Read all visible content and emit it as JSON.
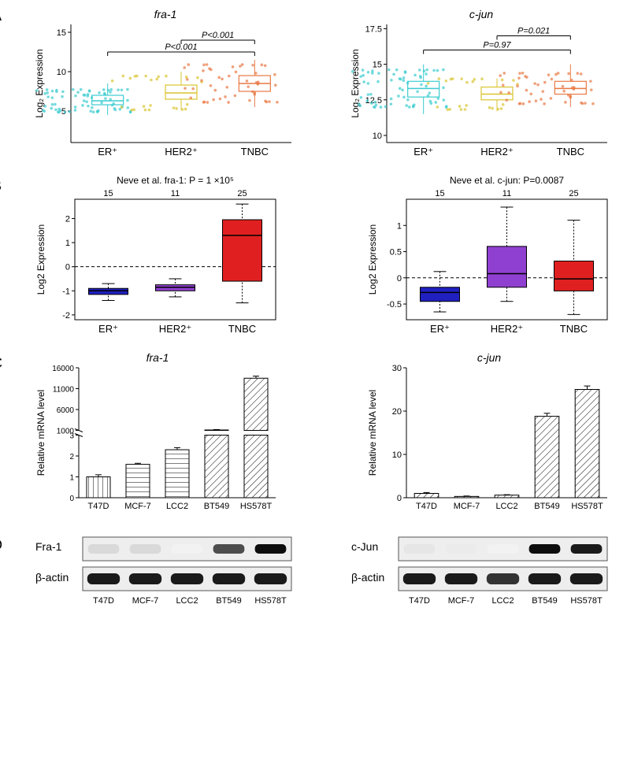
{
  "panelA": {
    "label": "A",
    "fra1": {
      "title": "fra-1",
      "ylabel": "Log₂ Expression",
      "ylim": [
        1,
        16
      ],
      "yticks": [
        5,
        10,
        15
      ],
      "categories": [
        "ER⁺",
        "HER2⁺",
        "TNBC"
      ],
      "colors": [
        "#3cccd0",
        "#d9c430",
        "#e87944"
      ],
      "medians": [
        6.3,
        7.3,
        8.5
      ],
      "q1": [
        5.8,
        6.5,
        7.5
      ],
      "q3": [
        7.0,
        8.3,
        9.5
      ],
      "whisker_low": [
        4.5,
        5.2,
        5.5
      ],
      "whisker_high": [
        8.5,
        10.0,
        11.5
      ],
      "annotations": [
        {
          "text": "P<0.001",
          "from": 0,
          "to": 2,
          "y": 12.5
        },
        {
          "text": "P<0.001",
          "from": 1,
          "to": 2,
          "y": 14
        }
      ]
    },
    "cjun": {
      "title": "c-jun",
      "ylabel": "Log₂ Expression",
      "ylim": [
        9.5,
        17.8
      ],
      "yticks": [
        10.0,
        12.5,
        15.0,
        17.5
      ],
      "categories": [
        "ER⁺",
        "HER2⁺",
        "TNBC"
      ],
      "colors": [
        "#3cccd0",
        "#d9c430",
        "#e87944"
      ],
      "medians": [
        13.3,
        12.9,
        13.3
      ],
      "q1": [
        12.7,
        12.5,
        12.9
      ],
      "q3": [
        13.8,
        13.4,
        13.8
      ],
      "whisker_low": [
        11.5,
        11.7,
        12.0
      ],
      "whisker_high": [
        15.0,
        14.0,
        15.0
      ],
      "annotations": [
        {
          "text": "P=0.97",
          "from": 0,
          "to": 2,
          "y": 16.0
        },
        {
          "text": "P=0.021",
          "from": 1,
          "to": 2,
          "y": 17.0
        }
      ]
    }
  },
  "panelB": {
    "label": "B",
    "fra1": {
      "title": "Neve et al. fra-1: P = 1 ×10⁵",
      "ylabel": "Log2 Expression",
      "counts": [
        "15",
        "11",
        "25"
      ],
      "categories": [
        "ER⁺",
        "HER2⁺",
        "TNBC"
      ],
      "colors": [
        "#2020c0",
        "#9040d0",
        "#e02020"
      ],
      "ylim": [
        -2.2,
        2.8
      ],
      "yticks": [
        -2,
        -1,
        0,
        1,
        2
      ],
      "medians": [
        -1.0,
        -0.85,
        1.3
      ],
      "q1": [
        -1.15,
        -1.0,
        -0.6
      ],
      "q3": [
        -0.9,
        -0.75,
        1.95
      ],
      "whisker_low": [
        -1.4,
        -1.25,
        -1.5
      ],
      "whisker_high": [
        -0.7,
        -0.5,
        2.6
      ]
    },
    "cjun": {
      "title": "Neve et al. c-jun: P=0.0087",
      "ylabel": "Log2 Expression",
      "counts": [
        "15",
        "11",
        "25"
      ],
      "categories": [
        "ER⁺",
        "HER2⁺",
        "TNBC"
      ],
      "colors": [
        "#2020c0",
        "#9040d0",
        "#e02020"
      ],
      "ylim": [
        -0.8,
        1.5
      ],
      "yticks": [
        -0.5,
        0.0,
        0.5,
        1.0
      ],
      "medians": [
        -0.28,
        0.08,
        -0.02
      ],
      "q1": [
        -0.45,
        -0.18,
        -0.25
      ],
      "q3": [
        -0.18,
        0.6,
        0.32
      ],
      "whisker_low": [
        -0.65,
        -0.45,
        -0.7
      ],
      "whisker_high": [
        0.12,
        1.35,
        1.1
      ]
    }
  },
  "panelC": {
    "label": "C",
    "fra1": {
      "title": "fra-1",
      "ylabel": "Relative mRNA level",
      "categories": [
        "T47D",
        "MCF-7",
        "LCC2",
        "BT549",
        "HS578T"
      ],
      "values": [
        1.0,
        1.6,
        2.3,
        1100,
        13500
      ],
      "errors": [
        0.1,
        0.05,
        0.1,
        100,
        500
      ],
      "break_at": 3,
      "lower_ylim": [
        0,
        3
      ],
      "lower_yticks": [
        0,
        1,
        2,
        3
      ],
      "upper_ylim": [
        1000,
        16000
      ],
      "upper_yticks": [
        1000,
        6000,
        11000,
        16000
      ],
      "bar_fill": "#ffffff",
      "bar_stroke": "#000000"
    },
    "cjun": {
      "title": "c-jun",
      "ylabel": "Relative mRNA level",
      "categories": [
        "T47D",
        "MCF-7",
        "LCC2",
        "BT549",
        "HS578T"
      ],
      "values": [
        1.0,
        0.3,
        0.6,
        18.8,
        25.0
      ],
      "errors": [
        0.2,
        0.1,
        0.1,
        0.7,
        0.8
      ],
      "ylim": [
        0,
        30
      ],
      "yticks": [
        0,
        10,
        20,
        30
      ],
      "bar_fill": "#ffffff",
      "bar_stroke": "#000000"
    }
  },
  "panelD": {
    "label": "D",
    "left": {
      "protein": "Fra-1",
      "loading": "β-actin",
      "lanes": [
        "T47D",
        "MCF-7",
        "LCC2",
        "BT549",
        "HS578T"
      ],
      "intensities": [
        0.15,
        0.15,
        0.05,
        0.7,
        0.95
      ],
      "loading_intensities": [
        0.9,
        0.9,
        0.9,
        0.9,
        0.9
      ]
    },
    "right": {
      "protein": "c-Jun",
      "loading": "β-actin",
      "lanes": [
        "T47D",
        "MCF-7",
        "LCC2",
        "BT549",
        "HS578T"
      ],
      "intensities": [
        0.1,
        0.08,
        0.05,
        0.95,
        0.9
      ],
      "loading_intensities": [
        0.9,
        0.9,
        0.8,
        0.9,
        0.9
      ]
    }
  }
}
